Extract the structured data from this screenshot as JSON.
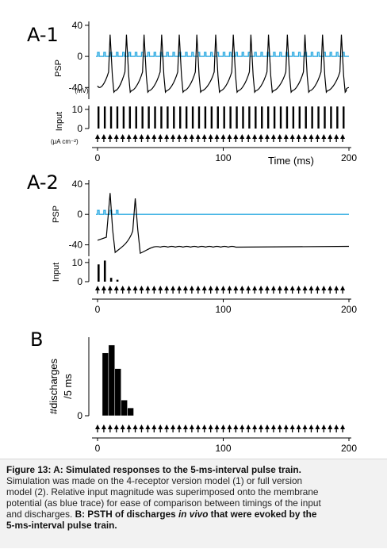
{
  "colors": {
    "trace": "#000000",
    "input_overlay": "#29a9e1",
    "caption_bg": "#f2f2f2"
  },
  "chart_data": [
    {
      "panel": "A-1",
      "type": "line",
      "panel_label": "A-1",
      "ylabel": "PSP",
      "yunit": "(mV)",
      "yticks": [
        40,
        0,
        -40
      ],
      "ylim": [
        -55,
        45
      ],
      "xlim": [
        -3,
        200
      ],
      "series": [
        {
          "kind": "membrane potential",
          "color": "#000000",
          "spike_times": [
            10,
            23,
            37,
            51,
            65,
            79,
            94,
            108,
            122,
            136,
            151,
            165,
            179,
            194
          ],
          "spike_peak": 28,
          "trough": -46,
          "rest": -40
        },
        {
          "kind": "relative input magnitude",
          "color": "#29a9e1",
          "pulse_interval": 5,
          "baseline": 0
        }
      ],
      "input": {
        "ylabel": "Input",
        "yunit": "(μA cm⁻²)",
        "yticks": [
          10,
          0
        ],
        "pulse_interval": 5,
        "pulse_start": 0,
        "pulse_end": 195,
        "pulse_amplitude": 10
      },
      "xticks": [
        0,
        100,
        200
      ],
      "xlabel": "Time (ms)"
    },
    {
      "panel": "A-2",
      "type": "line",
      "panel_label": "A-2",
      "ylabel": "PSP",
      "yticks": [
        40,
        0,
        -40
      ],
      "ylim": [
        -55,
        45
      ],
      "xlim": [
        -3,
        200
      ],
      "series": [
        {
          "kind": "membrane potential",
          "color": "#000000",
          "spike_times": [
            10,
            30
          ],
          "spike_peak": 28,
          "steady_state": -42
        },
        {
          "kind": "relative input magnitude",
          "color": "#29a9e1",
          "pulse_interval": 5,
          "baseline": 0
        }
      ],
      "input": {
        "ylabel": "Input",
        "yticks": [
          10,
          0
        ],
        "pulse_times": [
          0,
          5,
          10,
          15
        ],
        "pulse_amplitudes": [
          9,
          11,
          2,
          1
        ]
      },
      "stim_interval": 5,
      "stim_end": 195,
      "xticks": [
        0,
        100,
        200
      ]
    },
    {
      "panel": "B",
      "type": "bar",
      "panel_label": "B",
      "ylabel_line1": "#discharges",
      "ylabel_line2": "/5 ms",
      "yticks": [
        0
      ],
      "ylim": [
        0,
        10
      ],
      "bin_width": 5,
      "bins_start": [
        5,
        10,
        15,
        20,
        25
      ],
      "values": [
        8,
        9,
        6,
        2,
        1
      ],
      "stim_interval": 5,
      "stim_end": 195,
      "xlim": [
        -3,
        200
      ],
      "xticks": [
        0,
        100,
        200
      ]
    }
  ],
  "caption": {
    "line1_bold": "Figure 13: A: Simulated responses to the 5-ms-interval pulse train.",
    "line2": "Simulation was made on the 4-receptor version model (1) or full version",
    "line3": "model (2). Relative input magnitude was superimposed onto the membrane",
    "line4": "potential (as blue trace) for ease of comparison between timings of the input",
    "line5_pre": "and discharges. ",
    "line5_bold": "B: PSTH of discharges ",
    "line5_italic": "in vivo",
    "line5_bold2": " that were evoked by the",
    "line6_bold": "5-ms-interval pulse train."
  }
}
